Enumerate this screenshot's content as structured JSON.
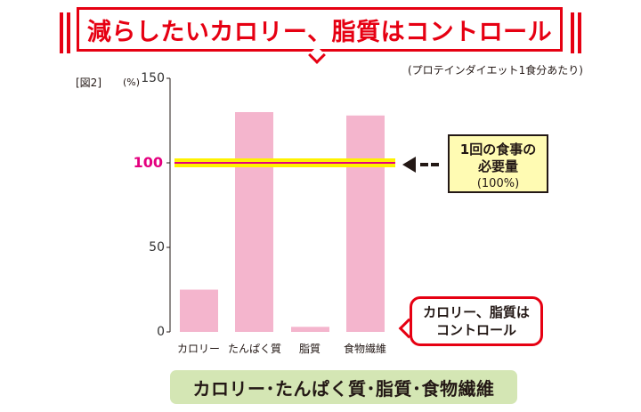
{
  "banner": {
    "title": "減らしたいカロリー、脂質はコントロール"
  },
  "figure_label": "[図2]",
  "unit_label": "(%)",
  "note": "(プロテインダイエット1食分あたり)",
  "target_box": {
    "line1": "1回の食事の",
    "line2": "必要量",
    "line3": "(100%)"
  },
  "callout": {
    "line1": "カロリー、脂質は",
    "line2": "コントロール"
  },
  "footer": "カロリー･たんぱく質･脂質･食物繊維",
  "colors": {
    "accent": "#e60012",
    "bar": "#f4b5cd",
    "target_line": "#e4007f",
    "target_glow": "#fff200",
    "footer_bg": "#d4e6b4",
    "box_bg": "#fffbb3"
  },
  "icons": {
    "arrow": "dashed-left-arrow-icon"
  },
  "chart_data": {
    "type": "bar",
    "categories": [
      "カロリー",
      "たんぱく質",
      "脂質",
      "食物繊維"
    ],
    "values": [
      25,
      130,
      3,
      128
    ],
    "ylim": [
      0,
      150
    ],
    "yticks": [
      0,
      50,
      100,
      150
    ],
    "reference_line": {
      "value": 100,
      "label": "100"
    },
    "grid": false
  }
}
